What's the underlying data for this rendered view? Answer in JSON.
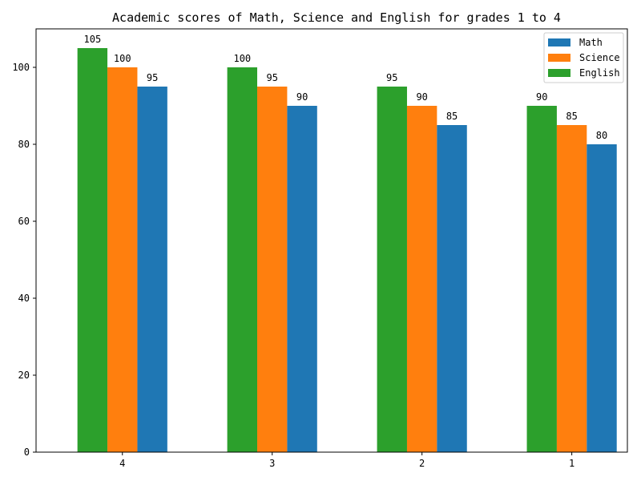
{
  "chart_data": {
    "type": "bar",
    "title": "Academic scores of Math, Science and English for grades 1 to 4",
    "xlabel": "",
    "ylabel": "",
    "categories": [
      "4",
      "3",
      "2",
      "1"
    ],
    "series": [
      {
        "name": "English",
        "color": "#2ca02c",
        "values": [
          105,
          100,
          95,
          90
        ]
      },
      {
        "name": "Science",
        "color": "#ff7f0e",
        "values": [
          100,
          95,
          90,
          85
        ]
      },
      {
        "name": "Math",
        "color": "#1f77b4",
        "values": [
          95,
          90,
          85,
          80
        ]
      }
    ],
    "legend_order": [
      "Math",
      "Science",
      "English"
    ],
    "legend_position": "top-right",
    "ylim": [
      0,
      110
    ],
    "yticks": [
      0,
      20,
      40,
      60,
      80,
      100
    ],
    "grid": false
  }
}
